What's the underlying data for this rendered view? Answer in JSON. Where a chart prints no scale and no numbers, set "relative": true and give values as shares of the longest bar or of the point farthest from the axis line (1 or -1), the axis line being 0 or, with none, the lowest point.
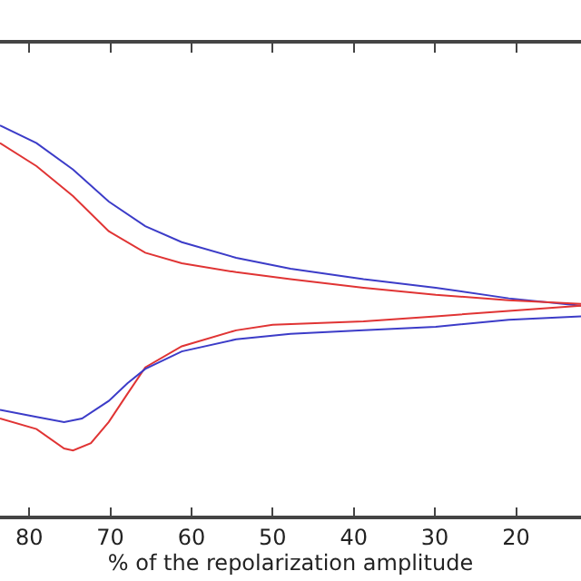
{
  "chart_data": {
    "type": "line",
    "relative": true,
    "xlabel": "% of the repolarization amplitude",
    "xlim": [
      83.6,
      12
    ],
    "xticks": [
      80,
      70,
      60,
      50,
      40,
      30,
      20
    ],
    "marker": "none",
    "line_style": "solid",
    "series": [
      {
        "color": "#3c3cc8",
        "x": [
          83.6,
          79.1,
          74.6,
          70.2,
          65.7,
          61.2,
          54.5,
          47.8,
          38.8,
          29.9,
          20.9,
          12.0
        ],
        "values": [
          1.0,
          0.955,
          0.887,
          0.805,
          0.742,
          0.701,
          0.661,
          0.633,
          0.606,
          0.584,
          0.557,
          0.538
        ]
      },
      {
        "color": "#e03434",
        "x": [
          83.6,
          79.1,
          74.6,
          70.2,
          65.7,
          61.2,
          54.5,
          47.8,
          38.8,
          29.9,
          20.9,
          12.0
        ],
        "values": [
          0.955,
          0.896,
          0.819,
          0.729,
          0.674,
          0.647,
          0.624,
          0.606,
          0.584,
          0.566,
          0.552,
          0.543
        ]
      },
      {
        "color": "#e03434",
        "x": [
          83.6,
          79.1,
          75.7,
          74.6,
          72.4,
          70.2,
          67.9,
          65.7,
          61.2,
          54.5,
          50.0,
          38.8,
          29.9,
          20.9,
          12.0
        ],
        "values": [
          0.249,
          0.222,
          0.172,
          0.167,
          0.186,
          0.24,
          0.312,
          0.38,
          0.434,
          0.475,
          0.489,
          0.498,
          0.511,
          0.525,
          0.538
        ]
      },
      {
        "color": "#3c3cc8",
        "x": [
          83.6,
          79.1,
          75.7,
          73.5,
          70.2,
          67.9,
          65.7,
          61.2,
          54.5,
          47.8,
          38.8,
          29.9,
          20.9,
          12.0
        ],
        "values": [
          0.271,
          0.253,
          0.24,
          0.249,
          0.294,
          0.339,
          0.376,
          0.421,
          0.452,
          0.466,
          0.475,
          0.484,
          0.502,
          0.511
        ]
      }
    ]
  }
}
